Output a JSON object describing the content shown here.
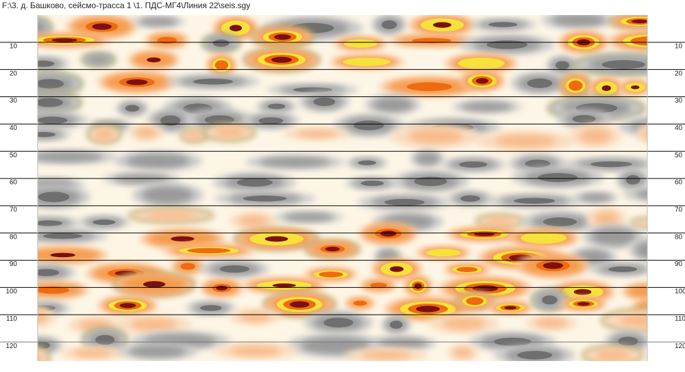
{
  "chart_data": {
    "type": "seismic-section",
    "title": "F:\\3. д. Башково, сейсмо-трасса 1  \\1. ПДС-МГ4\\Линия 22\\seis.sgy",
    "ylim": [
      0,
      127
    ],
    "yticks": [
      10,
      20,
      30,
      40,
      50,
      60,
      70,
      80,
      90,
      100,
      110,
      120
    ],
    "grid": true
  }
}
